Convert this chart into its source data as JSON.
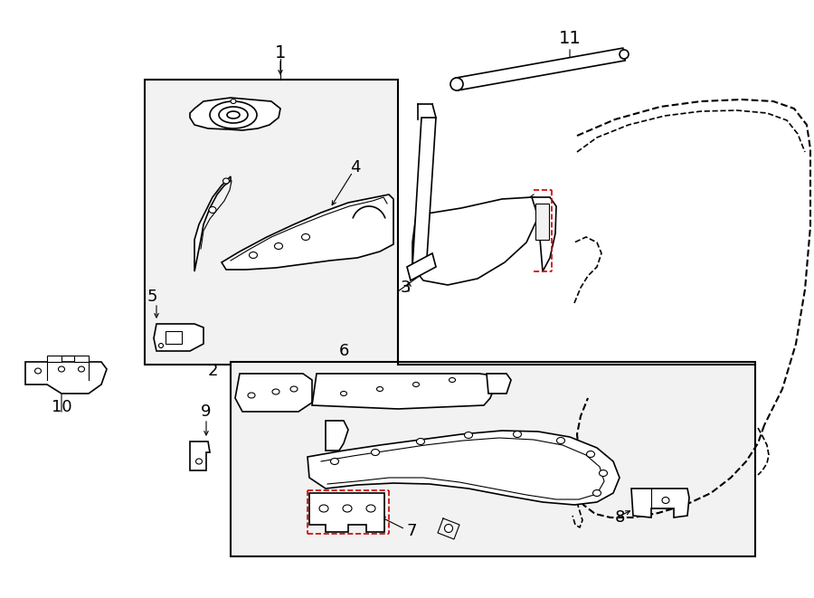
{
  "bg_color": "#ffffff",
  "border_color": "#000000",
  "red_color": "#cc0000",
  "gray_fill": "#f2f2f2",
  "figsize": [
    9.0,
    6.61
  ],
  "dpi": 100
}
